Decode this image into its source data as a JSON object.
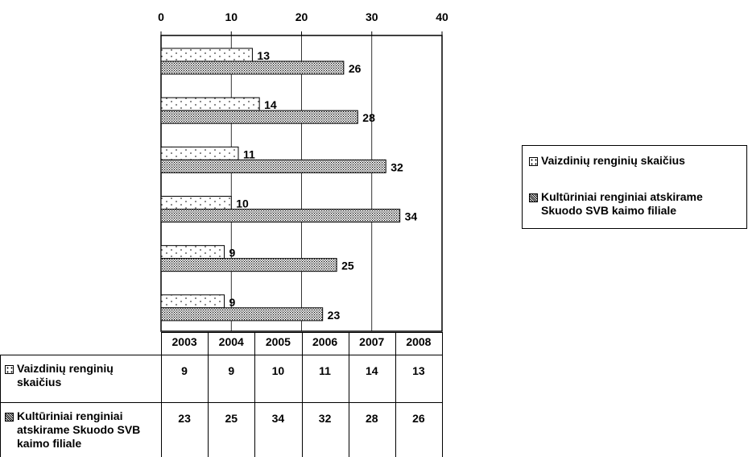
{
  "chart_data": {
    "type": "bar",
    "orientation": "horizontal",
    "categories": [
      "2003",
      "2004",
      "2005",
      "2006",
      "2007",
      "2008"
    ],
    "series": [
      {
        "name": "Vaizdinių renginių skaičius",
        "values": [
          9,
          9,
          10,
          11,
          14,
          13
        ],
        "pattern": "sparse-dots"
      },
      {
        "name": "Kultūriniai renginiai atskirame Skuodo SVB kaimo filiale",
        "values": [
          23,
          25,
          34,
          32,
          28,
          26
        ],
        "pattern": "dense-dots"
      }
    ],
    "xlim": [
      0,
      40
    ],
    "xticks": [
      "0",
      "10",
      "20",
      "30",
      "40"
    ],
    "grid": true,
    "legend_position": "right",
    "data_table": true,
    "title": "",
    "xlabel": "",
    "ylabel": ""
  },
  "legend": {
    "items": [
      {
        "label": "Vaizdinių renginių skaičius"
      },
      {
        "label": "Kultūriniai renginiai atskirame Skuodo SVB kaimo filiale"
      }
    ]
  },
  "data_table": {
    "row_headers": [
      "Vaizdinių renginių skaičius",
      "Kultūriniai renginiai atskirame Skuodo SVB kaimo filiale"
    ]
  }
}
